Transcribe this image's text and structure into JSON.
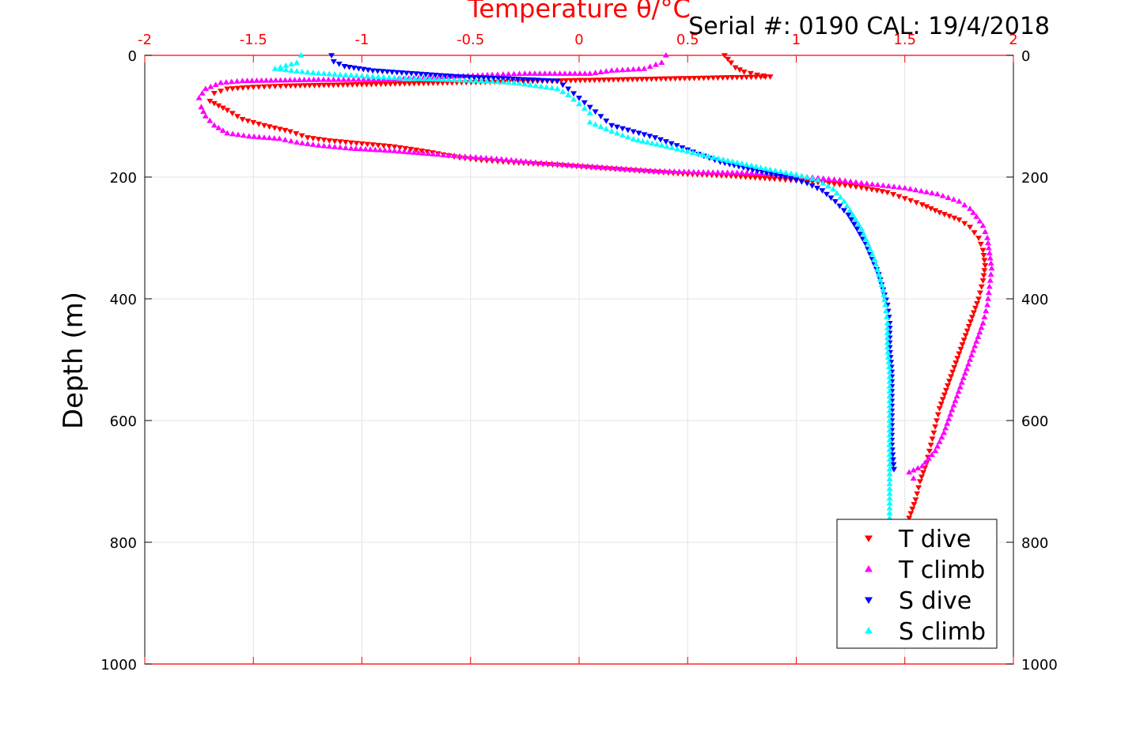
{
  "chart_data": {
    "type": "scatter",
    "title": "",
    "xlabel": "Temperature θ/°C",
    "ylabel": "Depth (m)",
    "annotation": "Serial #: 0190  CAL: 19/4/2018",
    "xlim": [
      -2,
      2
    ],
    "ylim": [
      0,
      1000
    ],
    "y_reversed": true,
    "x_axis_position": "top",
    "x_axis_color": "#ff0000",
    "grid": true,
    "legend_position": "bottom-right",
    "xticks": [
      "-2",
      "-1.5",
      "-1",
      "-0.5",
      "0",
      "0.5",
      "1",
      "1.5",
      "2"
    ],
    "yticks": [
      "0",
      "200",
      "400",
      "600",
      "800",
      "1000"
    ],
    "series": [
      {
        "name": "T dive",
        "marker": "triangle-down",
        "color": "#ff0000",
        "points": [
          [
            0.67,
            0
          ],
          [
            0.7,
            12
          ],
          [
            0.72,
            20
          ],
          [
            0.76,
            27
          ],
          [
            0.82,
            32
          ],
          [
            0.88,
            35
          ],
          [
            -1.35,
            50
          ],
          [
            -1.5,
            52
          ],
          [
            -1.62,
            55
          ],
          [
            -1.68,
            62
          ],
          [
            -1.7,
            75
          ],
          [
            -1.62,
            90
          ],
          [
            -1.55,
            105
          ],
          [
            -1.45,
            115
          ],
          [
            -1.33,
            125
          ],
          [
            -1.25,
            135
          ],
          [
            -1.15,
            140
          ],
          [
            -1.0,
            145
          ],
          [
            -0.85,
            150
          ],
          [
            -0.7,
            158
          ],
          [
            -0.55,
            168
          ],
          [
            -0.45,
            172
          ],
          [
            -0.3,
            176
          ],
          [
            -0.1,
            180
          ],
          [
            0.1,
            185
          ],
          [
            0.3,
            190
          ],
          [
            0.5,
            195
          ],
          [
            0.7,
            198
          ],
          [
            0.9,
            203
          ],
          [
            1.05,
            207
          ],
          [
            1.2,
            212
          ],
          [
            1.3,
            217
          ],
          [
            1.42,
            225
          ],
          [
            1.5,
            235
          ],
          [
            1.58,
            245
          ],
          [
            1.66,
            258
          ],
          [
            1.75,
            270
          ],
          [
            1.8,
            282
          ],
          [
            1.84,
            300
          ],
          [
            1.86,
            320
          ],
          [
            1.87,
            345
          ],
          [
            1.86,
            370
          ],
          [
            1.84,
            400
          ],
          [
            1.81,
            430
          ],
          [
            1.78,
            460
          ],
          [
            1.75,
            490
          ],
          [
            1.72,
            520
          ],
          [
            1.69,
            550
          ],
          [
            1.66,
            580
          ],
          [
            1.64,
            610
          ],
          [
            1.62,
            640
          ],
          [
            1.6,
            670
          ],
          [
            1.57,
            700
          ],
          [
            1.55,
            730
          ],
          [
            1.52,
            760
          ]
        ]
      },
      {
        "name": "T climb",
        "marker": "triangle-up",
        "color": "#ff00ff",
        "points": [
          [
            0.4,
            0
          ],
          [
            0.38,
            12
          ],
          [
            0.3,
            22
          ],
          [
            0.15,
            25
          ],
          [
            0.05,
            30
          ],
          [
            -0.25,
            30
          ],
          [
            -0.4,
            32
          ],
          [
            -0.6,
            35
          ],
          [
            -0.9,
            40
          ],
          [
            -1.2,
            40
          ],
          [
            -1.55,
            42
          ],
          [
            -1.65,
            45
          ],
          [
            -1.72,
            55
          ],
          [
            -1.75,
            70
          ],
          [
            -1.74,
            85
          ],
          [
            -1.72,
            100
          ],
          [
            -1.68,
            115
          ],
          [
            -1.62,
            128
          ],
          [
            -1.52,
            133
          ],
          [
            -1.38,
            137
          ],
          [
            -1.3,
            143
          ],
          [
            -1.2,
            148
          ],
          [
            -1.05,
            153
          ],
          [
            -0.85,
            157
          ],
          [
            -0.65,
            163
          ],
          [
            -0.5,
            167
          ],
          [
            -0.38,
            170
          ],
          [
            -0.2,
            176
          ],
          [
            -0.05,
            180
          ],
          [
            0.15,
            185
          ],
          [
            0.35,
            190
          ],
          [
            0.55,
            192
          ],
          [
            0.75,
            193
          ],
          [
            0.95,
            196
          ],
          [
            1.05,
            200
          ],
          [
            1.2,
            205
          ],
          [
            1.35,
            212
          ],
          [
            1.5,
            218
          ],
          [
            1.65,
            228
          ],
          [
            1.75,
            240
          ],
          [
            1.8,
            252
          ],
          [
            1.83,
            265
          ],
          [
            1.86,
            280
          ],
          [
            1.88,
            300
          ],
          [
            1.89,
            325
          ],
          [
            1.9,
            350
          ],
          [
            1.89,
            380
          ],
          [
            1.88,
            410
          ],
          [
            1.86,
            440
          ],
          [
            1.83,
            470
          ],
          [
            1.8,
            500
          ],
          [
            1.77,
            530
          ],
          [
            1.74,
            560
          ],
          [
            1.71,
            590
          ],
          [
            1.68,
            620
          ],
          [
            1.64,
            650
          ],
          [
            1.58,
            675
          ],
          [
            1.52,
            685
          ],
          [
            1.54,
            695
          ]
        ]
      },
      {
        "name": "S dive",
        "marker": "triangle-down",
        "color": "#0000ff",
        "points": [
          [
            -1.14,
            0
          ],
          [
            -1.13,
            10
          ],
          [
            -1.08,
            18
          ],
          [
            -0.95,
            25
          ],
          [
            -0.75,
            30
          ],
          [
            -0.55,
            35
          ],
          [
            -0.35,
            38
          ],
          [
            -0.1,
            42
          ],
          [
            -0.05,
            55
          ],
          [
            0.0,
            70
          ],
          [
            0.05,
            85
          ],
          [
            0.1,
            100
          ],
          [
            0.15,
            115
          ],
          [
            0.25,
            125
          ],
          [
            0.35,
            135
          ],
          [
            0.45,
            148
          ],
          [
            0.55,
            162
          ],
          [
            0.65,
            175
          ],
          [
            0.8,
            188
          ],
          [
            0.95,
            200
          ],
          [
            1.05,
            210
          ],
          [
            1.12,
            222
          ],
          [
            1.18,
            240
          ],
          [
            1.24,
            262
          ],
          [
            1.28,
            285
          ],
          [
            1.32,
            310
          ],
          [
            1.35,
            335
          ],
          [
            1.38,
            360
          ],
          [
            1.4,
            385
          ],
          [
            1.42,
            410
          ],
          [
            1.43,
            440
          ],
          [
            1.43,
            480
          ],
          [
            1.44,
            520
          ],
          [
            1.44,
            560
          ],
          [
            1.44,
            600
          ],
          [
            1.44,
            640
          ],
          [
            1.45,
            680
          ]
        ]
      },
      {
        "name": "S climb",
        "marker": "triangle-up",
        "color": "#00ffff",
        "points": [
          [
            -1.28,
            0
          ],
          [
            -1.3,
            12
          ],
          [
            -1.4,
            22
          ],
          [
            -1.25,
            28
          ],
          [
            -1.1,
            32
          ],
          [
            -0.95,
            35
          ],
          [
            -0.8,
            38
          ],
          [
            -0.6,
            40
          ],
          [
            -0.45,
            42
          ],
          [
            -0.3,
            45
          ],
          [
            -0.2,
            50
          ],
          [
            -0.1,
            55
          ],
          [
            -0.05,
            65
          ],
          [
            0.0,
            80
          ],
          [
            0.05,
            95
          ],
          [
            0.05,
            110
          ],
          [
            0.15,
            125
          ],
          [
            0.25,
            138
          ],
          [
            0.38,
            148
          ],
          [
            0.5,
            158
          ],
          [
            0.62,
            168
          ],
          [
            0.75,
            178
          ],
          [
            0.88,
            188
          ],
          [
            1.0,
            196
          ],
          [
            1.1,
            205
          ],
          [
            1.17,
            220
          ],
          [
            1.22,
            240
          ],
          [
            1.26,
            262
          ],
          [
            1.3,
            285
          ],
          [
            1.33,
            310
          ],
          [
            1.36,
            335
          ],
          [
            1.38,
            360
          ],
          [
            1.4,
            385
          ],
          [
            1.41,
            410
          ],
          [
            1.42,
            440
          ],
          [
            1.42,
            480
          ],
          [
            1.43,
            520
          ],
          [
            1.43,
            560
          ],
          [
            1.43,
            600
          ],
          [
            1.43,
            640
          ],
          [
            1.43,
            680
          ],
          [
            1.43,
            720
          ],
          [
            1.43,
            760
          ]
        ]
      }
    ]
  }
}
